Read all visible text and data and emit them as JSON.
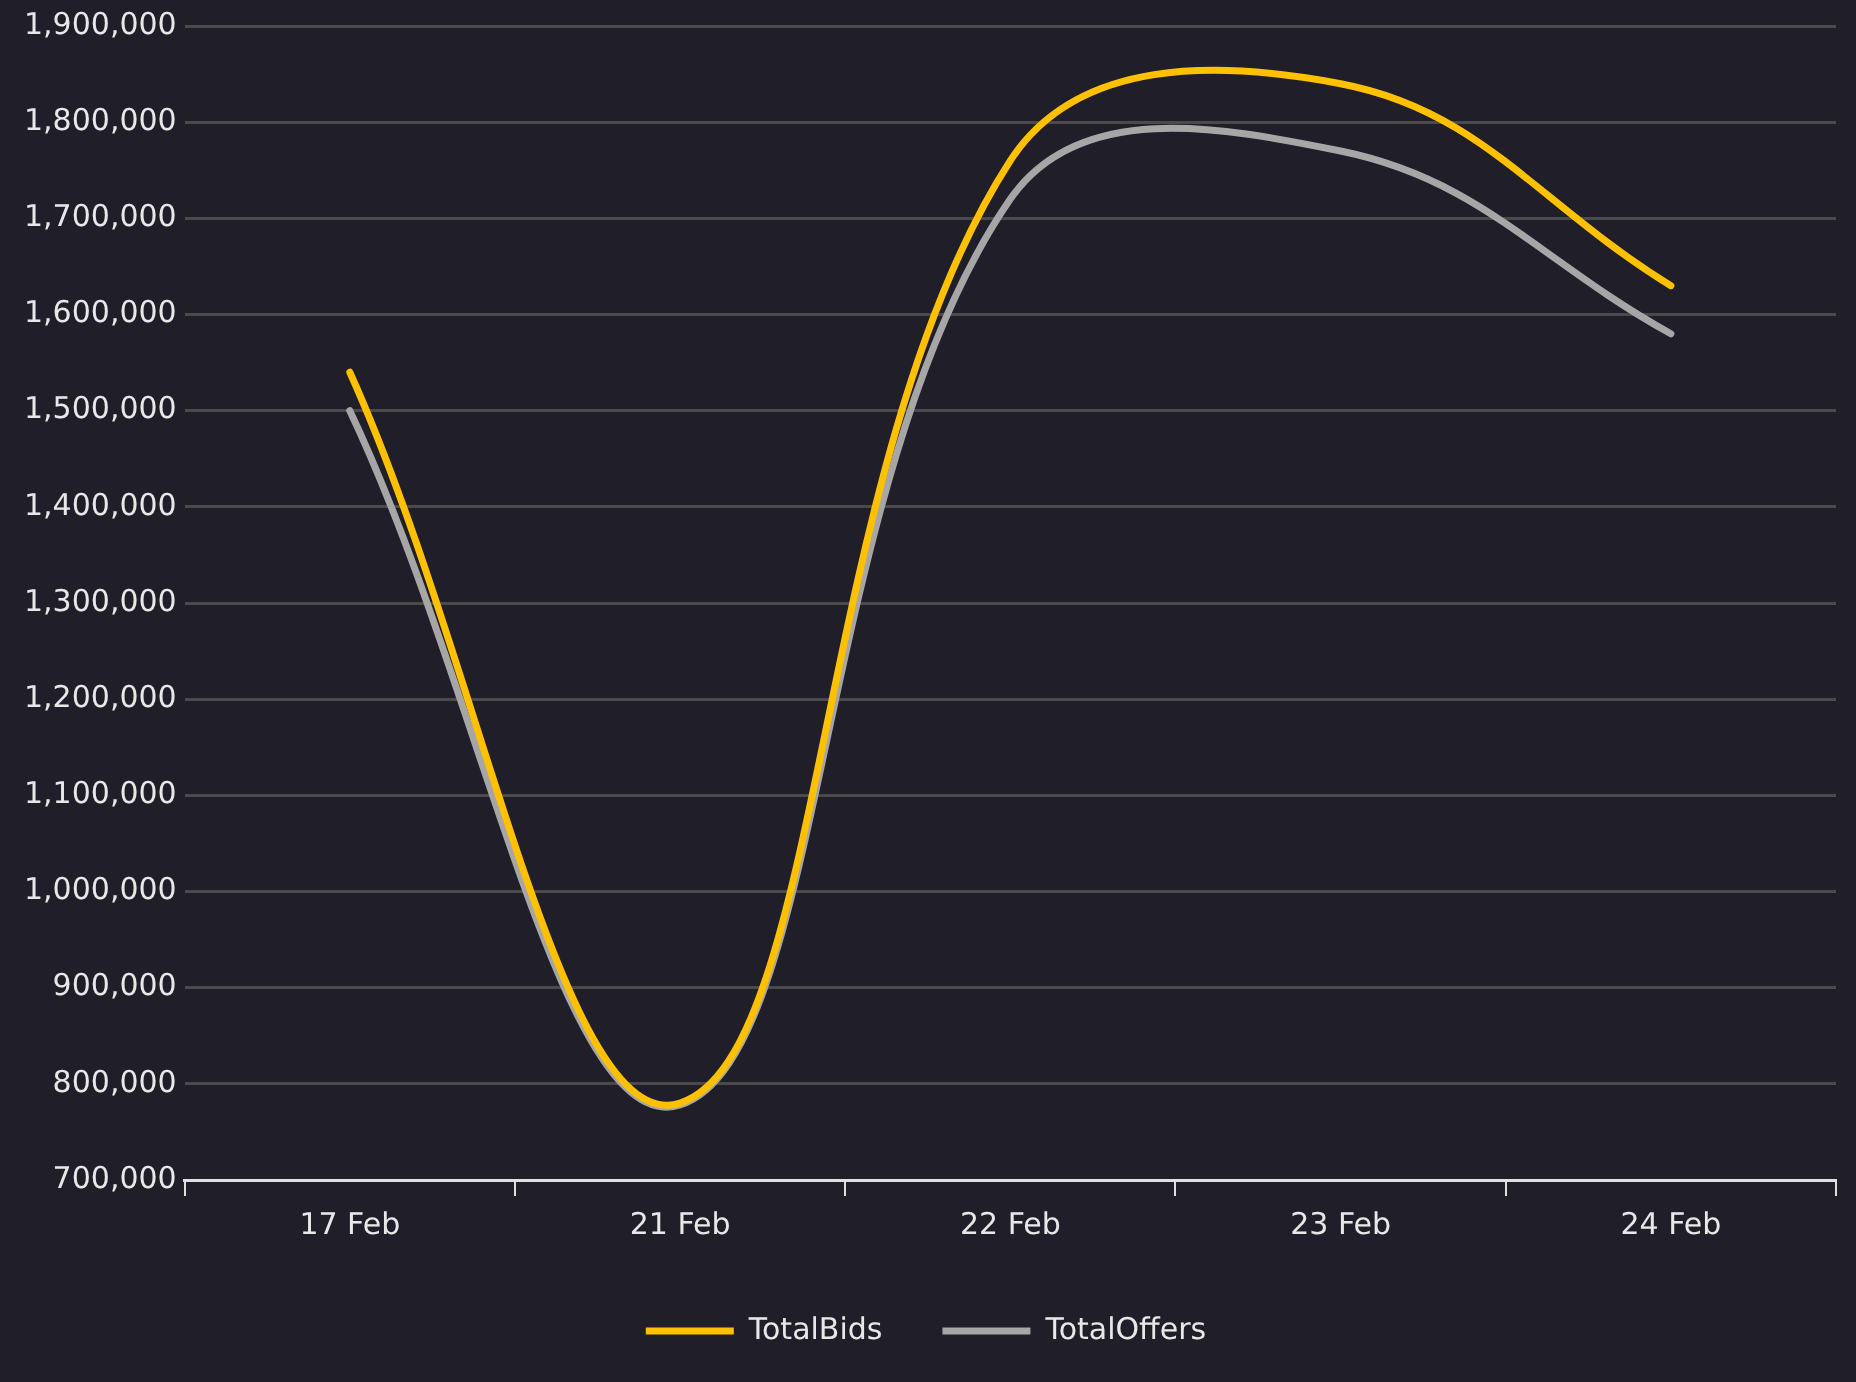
{
  "chart_data": {
    "type": "line",
    "categories": [
      "17 Feb",
      "21 Feb",
      "22 Feb",
      "23 Feb",
      "24 Feb"
    ],
    "series": [
      {
        "name": "TotalBids",
        "color": "#ffc000",
        "values": [
          1540000,
          780000,
          1760000,
          1840000,
          1630000
        ]
      },
      {
        "name": "TotalOffers",
        "color": "#a6a6a6",
        "values": [
          1500000,
          778000,
          1720000,
          1770000,
          1580000
        ]
      }
    ],
    "ylim": [
      700000,
      1900000
    ],
    "yticks": [
      {
        "value": 700000,
        "label": "700,000"
      },
      {
        "value": 800000,
        "label": "800,000"
      },
      {
        "value": 900000,
        "label": "900,000"
      },
      {
        "value": 1000000,
        "label": "1,000,000"
      },
      {
        "value": 1100000,
        "label": "1,100,000"
      },
      {
        "value": 1200000,
        "label": "1,200,000"
      },
      {
        "value": 1300000,
        "label": "1,300,000"
      },
      {
        "value": 1400000,
        "label": "1,400,000"
      },
      {
        "value": 1500000,
        "label": "1,500,000"
      },
      {
        "value": 1600000,
        "label": "1,600,000"
      },
      {
        "value": 1700000,
        "label": "1,700,000"
      },
      {
        "value": 1800000,
        "label": "1,800,000"
      },
      {
        "value": 1900000,
        "label": "1,900,000"
      }
    ],
    "grid": "y",
    "legend": "bottom",
    "marker": "none",
    "line_style": "solid"
  }
}
